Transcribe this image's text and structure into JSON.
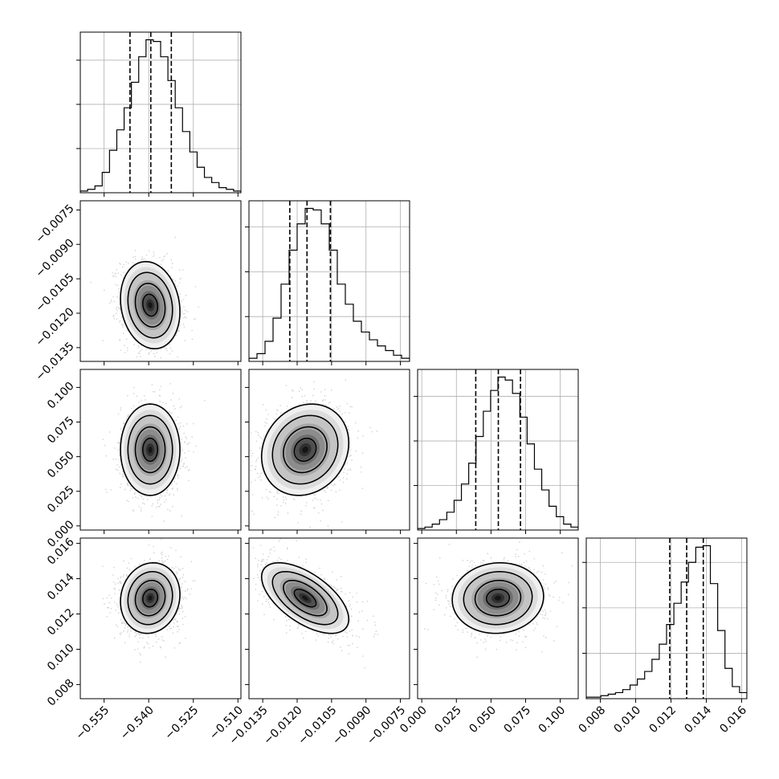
{
  "chart_data": {
    "type": "corner",
    "grid": true,
    "parameters": [
      {
        "range": [
          -0.563,
          -0.509
        ],
        "ticks": [
          -0.555,
          -0.54,
          -0.525,
          -0.51
        ],
        "tick_labels": [
          "−0.555",
          "−0.540",
          "−0.525",
          "−0.510"
        ],
        "quantiles": [
          -0.5463,
          -0.5393,
          -0.5324
        ],
        "hist_counts": [
          1,
          2,
          4,
          12,
          25,
          37,
          50,
          65,
          80,
          90,
          89,
          80,
          66,
          50,
          36,
          24,
          15,
          9,
          6,
          3,
          2,
          1
        ]
      },
      {
        "range": [
          -0.0141,
          -0.0071
        ],
        "ticks": [
          -0.0135,
          -0.012,
          -0.0105,
          -0.009,
          -0.0075
        ],
        "tick_labels": [
          "−0.0135",
          "−0.0120",
          "−0.0105",
          "−0.0090",
          "−0.0075"
        ],
        "quantiles": [
          -0.01232,
          -0.01157,
          -0.01055
        ],
        "hist_counts": [
          2,
          5,
          13,
          28,
          50,
          72,
          89,
          99,
          98,
          89,
          72,
          50,
          37,
          26,
          19,
          14,
          10,
          7,
          4,
          2
        ]
      },
      {
        "range": [
          -0.003,
          0.113
        ],
        "ticks": [
          0.0,
          0.025,
          0.05,
          0.075,
          0.1
        ],
        "tick_labels": [
          "0.000",
          "0.025",
          "0.050",
          "0.075",
          "0.100"
        ],
        "quantiles": [
          0.039,
          0.0553,
          0.0713
        ],
        "hist_counts": [
          1,
          2,
          4,
          7,
          12,
          20,
          31,
          45,
          63,
          80,
          94,
          103,
          101,
          92,
          76,
          58,
          41,
          27,
          16,
          9,
          4,
          2
        ]
      },
      {
        "range": [
          0.0072,
          0.0163
        ],
        "ticks": [
          0.008,
          0.01,
          0.012,
          0.014,
          0.016
        ],
        "tick_labels": [
          "0.008",
          "0.010",
          "0.012",
          "0.014",
          "0.016"
        ],
        "quantiles": [
          0.01193,
          0.01289,
          0.01383
        ],
        "hist_counts": [
          1,
          1,
          2,
          3,
          4,
          6,
          9,
          13,
          18,
          26,
          36,
          49,
          63,
          77,
          90,
          100,
          101,
          76,
          45,
          20,
          8,
          4
        ]
      }
    ],
    "pairs": [
      {
        "row": 1,
        "col": 0,
        "mean": [
          -0.5395,
          -0.01165
        ],
        "sd": [
          0.005,
          0.00095
        ],
        "rho": -0.15
      },
      {
        "row": 2,
        "col": 0,
        "mean": [
          -0.5395,
          0.055
        ],
        "sd": [
          0.005,
          0.0165
        ],
        "rho": 0.0
      },
      {
        "row": 2,
        "col": 1,
        "mean": [
          -0.01165,
          0.055
        ],
        "sd": [
          0.00095,
          0.0165
        ],
        "rho": 0.15
      },
      {
        "row": 3,
        "col": 0,
        "mean": [
          -0.5395,
          0.0129
        ],
        "sd": [
          0.005,
          0.001
        ],
        "rho": 0.1
      },
      {
        "row": 3,
        "col": 1,
        "mean": [
          -0.01165,
          0.0129
        ],
        "sd": [
          0.00095,
          0.001
        ],
        "rho": -0.6
      },
      {
        "row": 3,
        "col": 2,
        "mean": [
          0.055,
          0.0129
        ],
        "sd": [
          0.0165,
          0.001
        ],
        "rho": 0.05
      }
    ]
  }
}
